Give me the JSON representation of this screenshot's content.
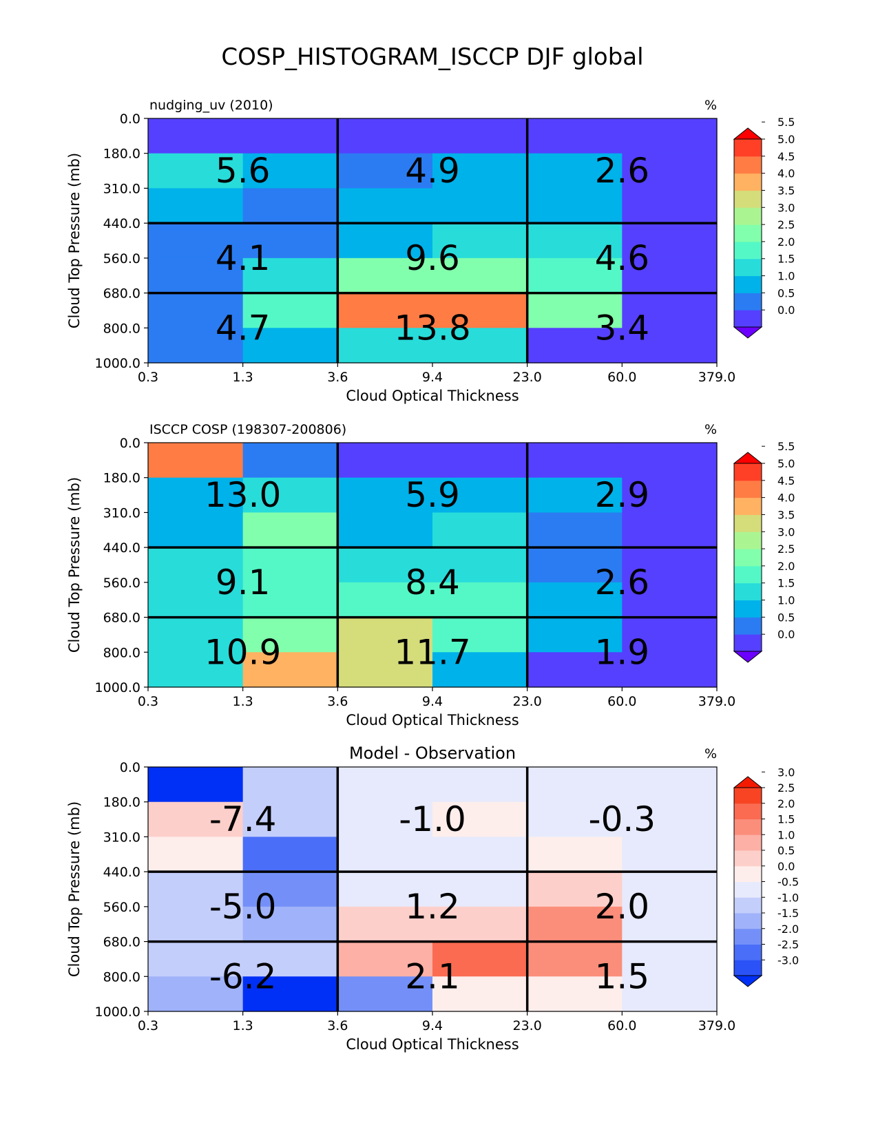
{
  "figure_title": "COSP_HISTOGRAM_ISCCP DJF global",
  "chart_data": [
    {
      "type": "heatmap",
      "title_left": "nudging_uv (2010)",
      "title_center": "",
      "units": "%",
      "xlabel": "Cloud Optical Thickness",
      "ylabel": "Cloud Top Pressure (mb)",
      "x_tick_labels": [
        "0.3",
        "1.3",
        "3.6",
        "9.4",
        "23.0",
        "60.0",
        "379.0"
      ],
      "y_tick_labels": [
        "0.0",
        "180.0",
        "310.0",
        "440.0",
        "560.0",
        "680.0",
        "800.0",
        "1000.0"
      ],
      "colors": [
        "#6c00ff",
        "#5540ff",
        "#2b7cf2",
        "#00b2ea",
        "#28dcda",
        "#54f8c7",
        "#82ffac",
        "#aaf592",
        "#d5dc7a",
        "#ffb261",
        "#ff7c45",
        "#ff4026",
        "#ff0000"
      ],
      "colorbar_labels": [
        "0.0",
        "0.5",
        "1.0",
        "1.5",
        "2.0",
        "2.5",
        "3.0",
        "3.5",
        "4.0",
        "4.5",
        "5.0",
        "5.5"
      ],
      "grid": [
        [
          0.2,
          0.2,
          0.1,
          0.1,
          0.1,
          0.1
        ],
        [
          1.6,
          1.4,
          0.8,
          1.4,
          1.3,
          0.2
        ],
        [
          1.4,
          0.8,
          1.4,
          1.3,
          1.3,
          0.1
        ],
        [
          0.8,
          0.9,
          1.3,
          1.9,
          1.8,
          0.2
        ],
        [
          0.9,
          1.9,
          2.8,
          2.8,
          2.4,
          0.2
        ],
        [
          0.9,
          2.3,
          4.8,
          4.8,
          2.6,
          0.3
        ],
        [
          0.8,
          1.3,
          1.7,
          1.8,
          0.4,
          0.3
        ]
      ],
      "box_sums": [
        "5.6",
        "4.9",
        "2.6",
        "4.1",
        "9.6",
        "4.6",
        "4.7",
        "13.8",
        "3.4"
      ]
    },
    {
      "type": "heatmap",
      "title_left": "ISCCP COSP (198307-200806)",
      "title_center": "",
      "units": "%",
      "xlabel": "Cloud Optical Thickness",
      "ylabel": "Cloud Top Pressure (mb)",
      "x_tick_labels": [
        "0.3",
        "1.3",
        "3.6",
        "9.4",
        "23.0",
        "60.0",
        "379.0"
      ],
      "y_tick_labels": [
        "0.0",
        "180.0",
        "310.0",
        "440.0",
        "560.0",
        "680.0",
        "800.0",
        "1000.0"
      ],
      "colors": [
        "#6c00ff",
        "#5540ff",
        "#2b7cf2",
        "#00b2ea",
        "#28dcda",
        "#54f8c7",
        "#82ffac",
        "#aaf592",
        "#d5dc7a",
        "#ffb261",
        "#ff7c45",
        "#ff4026",
        "#ff0000"
      ],
      "colorbar_labels": [
        "0.0",
        "0.5",
        "1.0",
        "1.5",
        "2.0",
        "2.5",
        "3.0",
        "3.5",
        "4.0",
        "4.5",
        "5.0",
        "5.5"
      ],
      "grid": [
        [
          4.7,
          0.8,
          0.2,
          0.2,
          0.2,
          0.2
        ],
        [
          1.4,
          1.9,
          1.4,
          1.4,
          1.4,
          0.2
        ],
        [
          1.4,
          2.9,
          1.4,
          1.8,
          0.8,
          0.2
        ],
        [
          1.9,
          2.4,
          1.9,
          1.7,
          0.8,
          0.2
        ],
        [
          1.9,
          2.4,
          2.2,
          2.3,
          1.4,
          0.2
        ],
        [
          1.9,
          2.9,
          3.9,
          2.4,
          1.3,
          0.2
        ],
        [
          1.8,
          4.2,
          3.8,
          1.4,
          0.2,
          0.2
        ]
      ],
      "box_sums": [
        "13.0",
        "5.9",
        "2.9",
        "9.1",
        "8.4",
        "2.6",
        "10.9",
        "11.7",
        "1.9"
      ]
    },
    {
      "type": "heatmap",
      "title_left": "",
      "title_center": "Model - Observation",
      "units": "%",
      "xlabel": "Cloud Optical Thickness",
      "ylabel": "Cloud Top Pressure (mb)",
      "x_tick_labels": [
        "0.3",
        "1.3",
        "3.6",
        "9.4",
        "23.0",
        "60.0",
        "379.0"
      ],
      "y_tick_labels": [
        "0.0",
        "180.0",
        "310.0",
        "440.0",
        "560.0",
        "680.0",
        "800.0",
        "1000.0"
      ],
      "colors": [
        "#0030f5",
        "#2a52f7",
        "#4a6ef7",
        "#7490f8",
        "#a0b2f9",
        "#c4cefb",
        "#e6eafc",
        "#fdeeec",
        "#fdcfca",
        "#fcb0a6",
        "#fb8e7b",
        "#fa6b51",
        "#f84423",
        "#f41a00"
      ],
      "colorbar_labels": [
        "-3.0",
        "-2.5",
        "-2.0",
        "-1.5",
        "-1.0",
        "-0.5",
        "0.0",
        "0.5",
        "1.0",
        "1.5",
        "2.0",
        "2.5",
        "3.0"
      ],
      "grid": [
        [
          -3.2,
          -0.6,
          -0.2,
          -0.2,
          -0.2,
          -0.2
        ],
        [
          0.7,
          -0.6,
          -0.2,
          0.2,
          -0.2,
          -0.2
        ],
        [
          0.3,
          -2.2,
          -0.2,
          -0.2,
          0.3,
          -0.2
        ],
        [
          -0.6,
          -1.6,
          -0.2,
          -0.2,
          0.7,
          -0.2
        ],
        [
          -0.6,
          -1.3,
          0.7,
          0.7,
          1.6,
          -0.2
        ],
        [
          -0.6,
          -0.6,
          1.3,
          2.2,
          1.6,
          -0.2
        ],
        [
          -1.3,
          -3.2,
          -1.6,
          0.3,
          0.3,
          -0.2
        ]
      ],
      "box_sums": [
        "-7.4",
        "-1.0",
        "-0.3",
        "-5.0",
        "1.2",
        "2.0",
        "-6.2",
        "2.1",
        "1.5"
      ]
    }
  ]
}
